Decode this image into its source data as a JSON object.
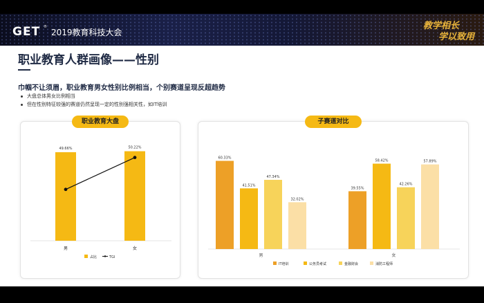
{
  "header": {
    "logo": "GET",
    "logo_sup": "®",
    "event_title": "2019教育科技大会",
    "slogan_line1": "教学相长",
    "slogan_line2": "学以致用"
  },
  "main": {
    "page_title": "职业教育人群画像——性别",
    "headline": "巾帼不让须眉，职业教育男女性别比例相当，个别赛道呈现反超趋势",
    "bullets": [
      "大盘总体男女比例相当",
      "但在性别特征较强的赛道仍然呈现一定的性别强相关性，如IT培训"
    ]
  },
  "colors": {
    "accent": "#f5b914",
    "title": "#1f2a44",
    "series": [
      "#eda027",
      "#f5b914",
      "#f7d35a",
      "#fbdfa6"
    ]
  },
  "chart_data": [
    {
      "type": "bar",
      "title": "职业教育大盘",
      "categories": [
        "男",
        "女"
      ],
      "series": [
        {
          "name": "占比",
          "values": [
            49.66,
            50.22
          ],
          "labels": [
            "49.66%",
            "50.22%"
          ]
        },
        {
          "name": "TGI",
          "values": [
            null,
            null
          ],
          "kind": "line"
        }
      ],
      "legend_position": "bottom",
      "grid": false
    },
    {
      "type": "bar",
      "title": "子赛道对比",
      "categories": [
        "男",
        "女"
      ],
      "series": [
        {
          "name": "IT培训",
          "values": [
            60.33,
            39.55
          ],
          "labels": [
            "60.33%",
            "39.55%"
          ]
        },
        {
          "name": "公务员考试",
          "values": [
            41.51,
            58.42
          ],
          "labels": [
            "41.51%",
            "58.42%"
          ]
        },
        {
          "name": "金融财会",
          "values": [
            47.34,
            42.26
          ],
          "labels": [
            "47.34%",
            "42.26%"
          ]
        },
        {
          "name": "消防工程师",
          "values": [
            32.02,
            57.89
          ],
          "labels": [
            "32.02%",
            "57.89%"
          ]
        }
      ],
      "legend_position": "bottom",
      "grid": false
    }
  ]
}
